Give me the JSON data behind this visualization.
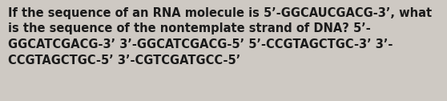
{
  "text": "If the sequence of an RNA molecule is 5’-GGCAUCGACG-3’, what\nis the sequence of the nontemplate strand of DNA? 5’-\nGGCATCGACG-3’ 3’-GGCATCGACG-5’ 5’-CCGTAGCTGC-3’ 3’-\nCCGTAGCTGC-5’ 3’-CGTCGATGCC-5’",
  "bg_color": "#cec9c3",
  "text_color": "#1a1a1a",
  "font_size": 10.5,
  "fig_width": 5.58,
  "fig_height": 1.26
}
